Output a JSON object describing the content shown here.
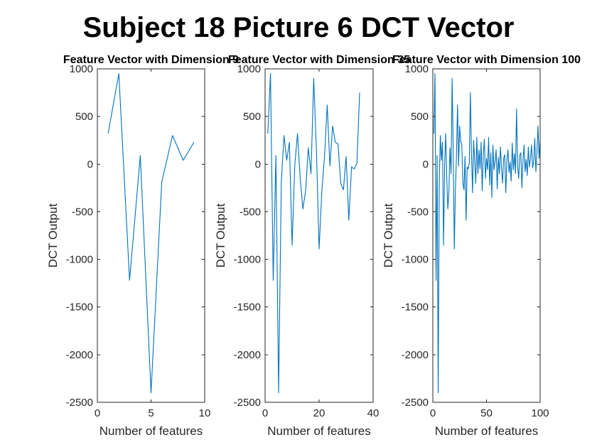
{
  "figure": {
    "suptitle": "Subject 18 Picture 6 DCT Vector"
  },
  "colors": {
    "series": "#0072BD",
    "axis": "#262626"
  },
  "chart_data": [
    {
      "type": "line",
      "title": "Feature Vector with Dimension 9",
      "xlabel": "Number of features",
      "ylabel": "DCT Output",
      "xlim": [
        0,
        10
      ],
      "ylim": [
        -2500,
        1000
      ],
      "xticks": [
        0,
        5,
        10
      ],
      "yticks": [
        -2500,
        -2000,
        -1500,
        -1000,
        -500,
        0,
        500,
        1000
      ],
      "grid": false,
      "x": [
        1,
        2,
        3,
        4,
        5,
        6,
        7,
        8,
        9
      ],
      "series": [
        {
          "values": [
            320,
            950,
            -1220,
            90,
            -2400,
            -190,
            300,
            40,
            230
          ]
        }
      ]
    },
    {
      "type": "line",
      "title": "Feature Vector with Dimension 35",
      "xlabel": "Number of features",
      "ylabel": "DCT Output",
      "xlim": [
        0,
        40
      ],
      "ylim": [
        -2500,
        1000
      ],
      "xticks": [
        0,
        20,
        40
      ],
      "yticks": [
        -2500,
        -2000,
        -1500,
        -1000,
        -500,
        0,
        500,
        1000
      ],
      "grid": false,
      "x": [
        1,
        2,
        3,
        4,
        5,
        6,
        7,
        8,
        9,
        10,
        11,
        12,
        13,
        14,
        15,
        16,
        17,
        18,
        19,
        20,
        21,
        22,
        23,
        24,
        25,
        26,
        27,
        28,
        29,
        30,
        31,
        32,
        33,
        34,
        35
      ],
      "series": [
        {
          "values": [
            320,
            950,
            -1220,
            90,
            -2400,
            -190,
            300,
            40,
            230,
            -850,
            -10,
            320,
            -150,
            -470,
            -280,
            170,
            -100,
            900,
            150,
            -890,
            -290,
            80,
            620,
            -20,
            400,
            230,
            210,
            -200,
            -270,
            80,
            -590,
            -30,
            -50,
            10,
            750
          ]
        }
      ]
    },
    {
      "type": "line",
      "title": "Feature Vector with Dimension 100",
      "xlabel": "Number of features",
      "ylabel": "DCT Output",
      "xlim": [
        0,
        100
      ],
      "ylim": [
        -2500,
        1000
      ],
      "xticks": [
        0,
        50,
        100
      ],
      "yticks": [
        -2500,
        -2000,
        -1500,
        -1000,
        -500,
        0,
        500,
        1000
      ],
      "grid": false,
      "x": [
        1,
        2,
        3,
        4,
        5,
        6,
        7,
        8,
        9,
        10,
        11,
        12,
        13,
        14,
        15,
        16,
        17,
        18,
        19,
        20,
        21,
        22,
        23,
        24,
        25,
        26,
        27,
        28,
        29,
        30,
        31,
        32,
        33,
        34,
        35,
        36,
        37,
        38,
        39,
        40,
        41,
        42,
        43,
        44,
        45,
        46,
        47,
        48,
        49,
        50,
        51,
        52,
        53,
        54,
        55,
        56,
        57,
        58,
        59,
        60,
        61,
        62,
        63,
        64,
        65,
        66,
        67,
        68,
        69,
        70,
        71,
        72,
        73,
        74,
        75,
        76,
        77,
        78,
        79,
        80,
        81,
        82,
        83,
        84,
        85,
        86,
        87,
        88,
        89,
        90,
        91,
        92,
        93,
        94,
        95,
        96,
        97,
        98,
        99,
        100
      ],
      "series": [
        {
          "values": [
            320,
            950,
            -1220,
            90,
            -2400,
            -190,
            300,
            40,
            230,
            -850,
            -10,
            320,
            -150,
            -470,
            -280,
            170,
            -100,
            900,
            150,
            -890,
            -290,
            80,
            620,
            -20,
            400,
            230,
            210,
            -200,
            -270,
            80,
            -590,
            -30,
            -50,
            10,
            750,
            120,
            -300,
            250,
            30,
            -200,
            280,
            -100,
            150,
            -50,
            230,
            -280,
            100,
            260,
            -150,
            60,
            -60,
            280,
            -220,
            120,
            -350,
            200,
            -60,
            30,
            150,
            -260,
            70,
            -100,
            180,
            -40,
            -200,
            60,
            100,
            -300,
            40,
            150,
            -90,
            20,
            -180,
            220,
            -60,
            110,
            -100,
            580,
            -20,
            -150,
            90,
            120,
            -250,
            30,
            200,
            -80,
            50,
            -120,
            180,
            -30,
            60,
            200,
            -40,
            30,
            270,
            -80,
            120,
            400,
            60,
            250
          ]
        }
      ]
    }
  ]
}
